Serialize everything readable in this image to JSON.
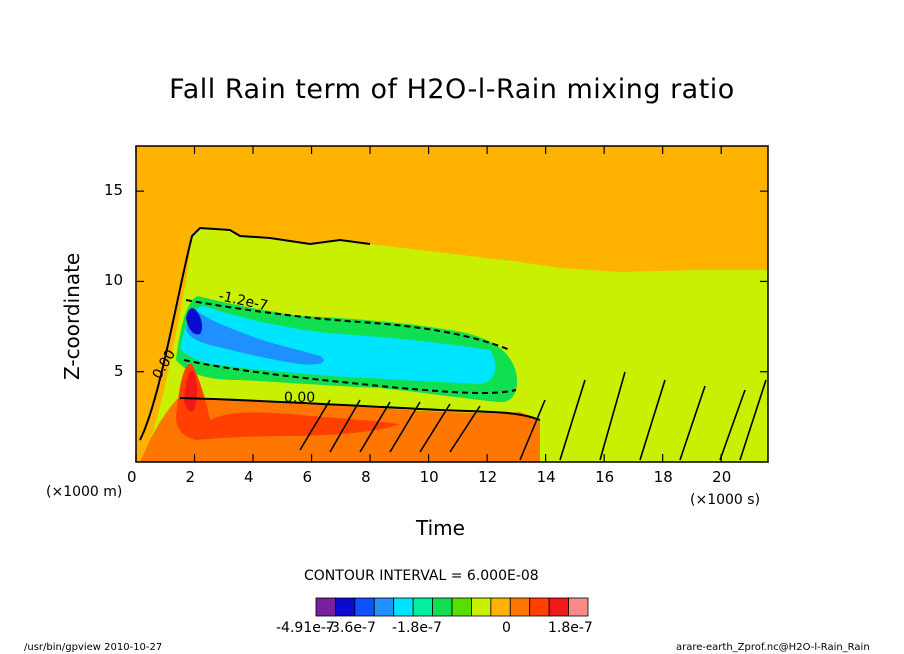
{
  "chart_data": {
    "type": "heatmap",
    "title": "Fall Rain term of H2O-l-Rain mixing ratio",
    "xlabel": "Time",
    "ylabel": "Z-coordinate",
    "x_units": "(×1000 s)",
    "y_units": "(×1000 m)",
    "xlim": [
      0,
      21.6
    ],
    "ylim": [
      0,
      17.5
    ],
    "x_ticks": [
      0,
      2,
      4,
      6,
      8,
      10,
      12,
      14,
      16,
      18,
      20
    ],
    "y_ticks": [
      5,
      10,
      15
    ],
    "background_value_color": "#ffb300",
    "contour_interval_text": "CONTOUR INTERVAL = 6.000E-08",
    "contour_labels": [
      "-1.2e-7",
      "0.00",
      "0.00"
    ],
    "colorbar": {
      "colors": [
        "#7a1fa2",
        "#0a0ad0",
        "#1050ff",
        "#1e90ff",
        "#00e5ff",
        "#00f0a0",
        "#10e050",
        "#55e000",
        "#c8f000",
        "#ffb300",
        "#ff7700",
        "#ff4000",
        "#f01818",
        "#f88a8a"
      ],
      "tick_labels": [
        "-4.91e-7",
        "-3.6e-7",
        "-1.8e-7",
        "0",
        "1.8e-7"
      ]
    },
    "regions": [
      {
        "name": "zero-band (yellow)",
        "x_range": [
          1.5,
          21.6
        ],
        "z_range": [
          0,
          12.8
        ]
      },
      {
        "name": "negative core (blue)",
        "x_range": [
          1.5,
          12.8
        ],
        "z_range": [
          3.5,
          9.5
        ],
        "min": -4.91e-07
      },
      {
        "name": "positive core (red)",
        "x_range": [
          1.3,
          12.5
        ],
        "z_range": [
          0,
          6
        ],
        "max": 1.8e-07
      }
    ]
  },
  "footer": {
    "left": "/usr/bin/gpview   2010-10-27",
    "right": "arare-earth_Zprof.nc@H2O-l-Rain_Rain"
  }
}
